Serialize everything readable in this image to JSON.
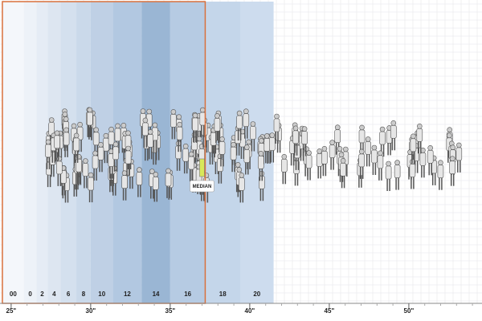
{
  "chart_data": {
    "type": "band",
    "xlim": [
      24.3,
      54.6
    ],
    "xticks": [
      {
        "value": 25,
        "label": "25\""
      },
      {
        "value": 30,
        "label": "30\""
      },
      {
        "value": 35,
        "label": "35\""
      },
      {
        "value": 40,
        "label": "40\""
      },
      {
        "value": 45,
        "label": "45\""
      },
      {
        "value": 50,
        "label": "50\""
      }
    ],
    "grid": true,
    "bands": [
      {
        "label": "00",
        "from": 24.45,
        "to": 25.8,
        "color": "#f4f7fb"
      },
      {
        "label": "0",
        "from": 25.8,
        "to": 26.6,
        "color": "#edf2f8"
      },
      {
        "label": "2",
        "from": 26.6,
        "to": 27.3,
        "color": "#e5ecf5"
      },
      {
        "label": "4",
        "from": 27.3,
        "to": 28.1,
        "color": "#dde6f1"
      },
      {
        "label": "6",
        "from": 28.1,
        "to": 29.1,
        "color": "#d4e0ee"
      },
      {
        "label": "8",
        "from": 29.1,
        "to": 30.0,
        "color": "#cad9ea"
      },
      {
        "label": "10",
        "from": 30.0,
        "to": 31.4,
        "color": "#bfd0e5"
      },
      {
        "label": "12",
        "from": 31.4,
        "to": 33.2,
        "color": "#b2c8e1"
      },
      {
        "label": "14",
        "from": 33.2,
        "to": 35.0,
        "color": "#9ab6d4"
      },
      {
        "label": "16",
        "from": 35.0,
        "to": 37.2,
        "color": "#b6cbe3"
      },
      {
        "label": "18",
        "from": 37.2,
        "to": 39.4,
        "color": "#c4d6ea"
      },
      {
        "label": "20",
        "from": 39.4,
        "to": 41.5,
        "color": "#cddcee"
      }
    ],
    "highlight": {
      "from": 24.45,
      "to": 37.2,
      "color": "#d9703c"
    },
    "median": {
      "label": "MEDIAN",
      "value": 37.0
    }
  }
}
